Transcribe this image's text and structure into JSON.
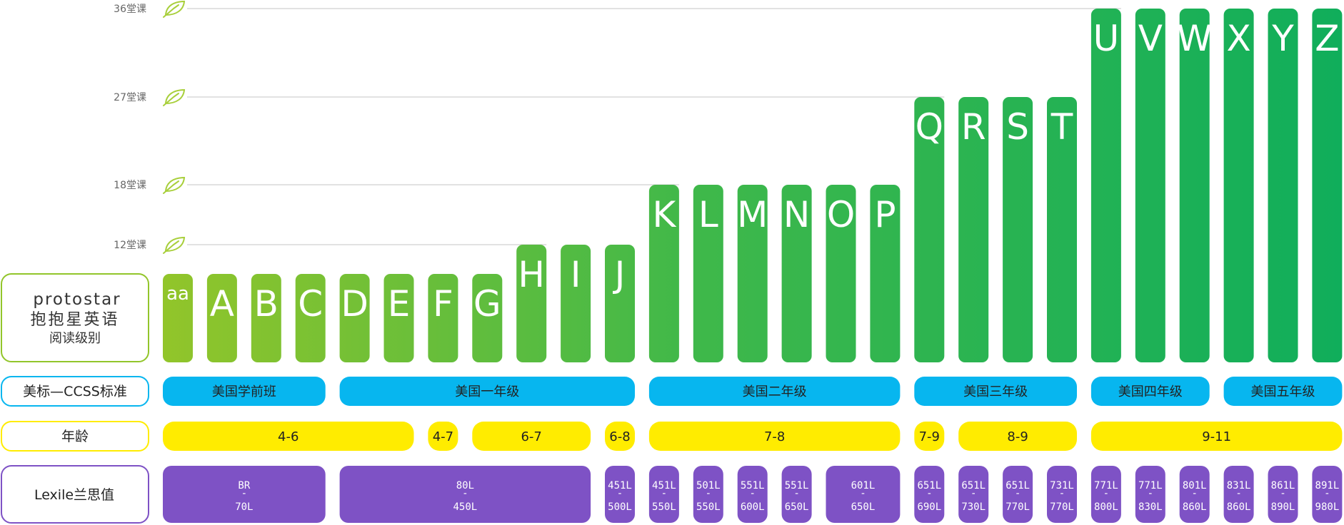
{
  "colors": {
    "bar_light": "#92c52a",
    "bar_dark": "#10ae5b",
    "ccss": "#07b6ef",
    "age": "#ffec00",
    "lexile": "#7e52c5",
    "grid": "#d9d9d9",
    "leaf": "#a8cf3b"
  },
  "brand": {
    "logo": "protostar",
    "name": "抱抱星英语",
    "subtitle": "阅读级别"
  },
  "row_labels": {
    "ccss": "美标—CCSS标准",
    "age": "年龄",
    "lexile": "Lexile兰思值"
  },
  "chart_data": {
    "type": "bar",
    "y_ticks": [
      {
        "value": 36,
        "label": "36堂课"
      },
      {
        "value": 27,
        "label": "27堂课"
      },
      {
        "value": 18,
        "label": "18堂课"
      },
      {
        "value": 12,
        "label": "12堂课"
      }
    ],
    "categories": [
      "aa",
      "A",
      "B",
      "C",
      "D",
      "E",
      "F",
      "G",
      "H",
      "I",
      "J",
      "K",
      "L",
      "M",
      "N",
      "O",
      "P",
      "Q",
      "R",
      "S",
      "T",
      "U",
      "V",
      "W",
      "X",
      "Y",
      "Z"
    ],
    "values": [
      9,
      9,
      9,
      9,
      9,
      9,
      9,
      9,
      12,
      12,
      12,
      18,
      18,
      18,
      18,
      18,
      18,
      27,
      27,
      27,
      27,
      36,
      36,
      36,
      36,
      36,
      36
    ],
    "ccss_groups": [
      {
        "label": "美国学前班",
        "start": 0,
        "end": 3
      },
      {
        "label": "美国一年级",
        "start": 4,
        "end": 10
      },
      {
        "label": "美国二年级",
        "start": 11,
        "end": 16
      },
      {
        "label": "美国三年级",
        "start": 17,
        "end": 20
      },
      {
        "label": "美国四年级",
        "start": 21,
        "end": 23
      },
      {
        "label": "美国五年级",
        "start": 24,
        "end": 26
      }
    ],
    "age_groups": [
      {
        "label": "4-6",
        "start": 0,
        "end": 5
      },
      {
        "label": "4-7",
        "start": 6,
        "end": 6
      },
      {
        "label": "6-7",
        "start": 7,
        "end": 9
      },
      {
        "label": "6-8",
        "start": 10,
        "end": 10
      },
      {
        "label": "7-8",
        "start": 11,
        "end": 16
      },
      {
        "label": "7-9",
        "start": 17,
        "end": 17
      },
      {
        "label": "8-9",
        "start": 18,
        "end": 20
      },
      {
        "label": "9-11",
        "start": 21,
        "end": 26
      }
    ],
    "lexile_groups": [
      {
        "low": "BR",
        "high": "70L",
        "start": 0,
        "end": 3
      },
      {
        "low": "80L",
        "high": "450L",
        "start": 4,
        "end": 9
      },
      {
        "low": "451L",
        "high": "500L",
        "start": 10,
        "end": 10
      },
      {
        "low": "451L",
        "high": "550L",
        "start": 11,
        "end": 11
      },
      {
        "low": "501L",
        "high": "550L",
        "start": 12,
        "end": 12
      },
      {
        "low": "551L",
        "high": "600L",
        "start": 13,
        "end": 13
      },
      {
        "low": "551L",
        "high": "650L",
        "start": 14,
        "end": 14
      },
      {
        "low": "601L",
        "high": "650L",
        "start": 15,
        "end": 16
      },
      {
        "low": "651L",
        "high": "690L",
        "start": 17,
        "end": 17
      },
      {
        "low": "651L",
        "high": "730L",
        "start": 18,
        "end": 18
      },
      {
        "low": "651L",
        "high": "770L",
        "start": 19,
        "end": 19
      },
      {
        "low": "731L",
        "high": "770L",
        "start": 20,
        "end": 20
      },
      {
        "low": "771L",
        "high": "800L",
        "start": 21,
        "end": 21
      },
      {
        "low": "771L",
        "high": "830L",
        "start": 22,
        "end": 22
      },
      {
        "low": "801L",
        "high": "860L",
        "start": 23,
        "end": 23
      },
      {
        "low": "831L",
        "high": "860L",
        "start": 24,
        "end": 24
      },
      {
        "low": "861L",
        "high": "890L",
        "start": 25,
        "end": 25
      },
      {
        "low": "891L",
        "high": "980L",
        "start": 26,
        "end": 26
      }
    ]
  }
}
